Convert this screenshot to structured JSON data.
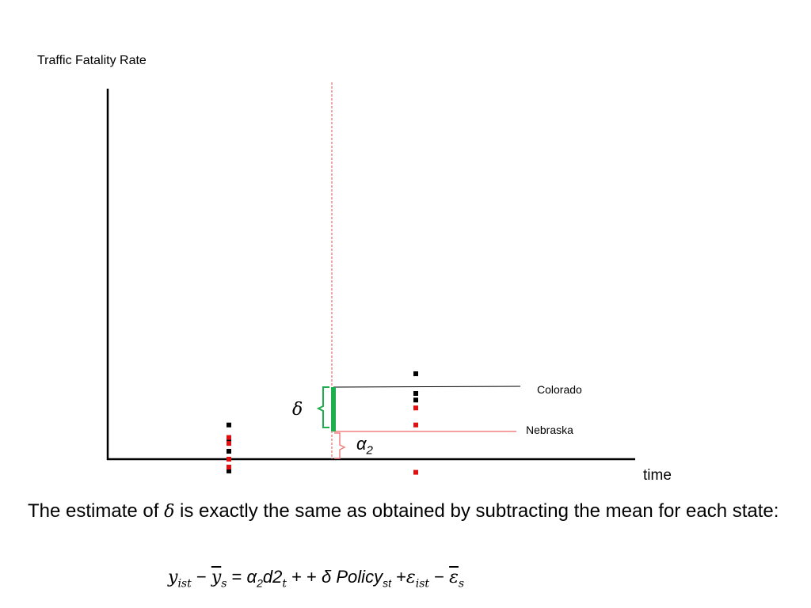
{
  "chart_data": {
    "type": "scatter",
    "title": "",
    "ylabel": "Traffic Fatality Rate",
    "xlabel": "time",
    "series": [
      {
        "name": "Colorado",
        "color": "#000000",
        "points": [
          {
            "x": 1,
            "y": 5.2
          },
          {
            "x": 1,
            "y": 3.0
          },
          {
            "x": 1,
            "y": 1.2
          },
          {
            "x": 1,
            "y": -1.8
          },
          {
            "x": 2,
            "y": 13.0
          },
          {
            "x": 2,
            "y": 10.0
          },
          {
            "x": 2,
            "y": 9.0
          }
        ]
      },
      {
        "name": "Nebraska",
        "color": "#dd1111",
        "points": [
          {
            "x": 1,
            "y": 3.3
          },
          {
            "x": 1,
            "y": 2.4
          },
          {
            "x": 1,
            "y": 0.0
          },
          {
            "x": 1,
            "y": -1.2
          },
          {
            "x": 2,
            "y": 7.8
          },
          {
            "x": 2,
            "y": 5.2
          },
          {
            "x": 2,
            "y": -2.0
          }
        ]
      }
    ],
    "reference_lines": [
      {
        "name": "Colorado",
        "y": 11.5,
        "color": "#000000"
      },
      {
        "name": "Nebraska",
        "y": 4.8,
        "color": "#f08080"
      }
    ],
    "policy_time": 1.5,
    "delta_span": [
      4.8,
      11.5
    ],
    "alpha_span": [
      0.0,
      4.8
    ],
    "annotations": {
      "delta": "δ",
      "alpha": "α",
      "alpha_sub": "2"
    },
    "colors": {
      "policy_line": "#d9534f",
      "delta_bar": "#1fae4e",
      "brace_delta": "#1fae4e",
      "brace_alpha": "#f08080"
    }
  },
  "text": {
    "statement_part1": "The estimate of ",
    "statement_delta": "δ",
    "statement_part2": " is exactly the same as obtained by subtracting the mean for each state:"
  },
  "equation": {
    "y": "y",
    "y_sub": "ist",
    "minus1": " − ",
    "ybar": "y",
    "ybar_sub": "s",
    "equals": " =  ",
    "alpha": "α",
    "alpha_sub": "2",
    "d2": "d2",
    "d2_sub": "t",
    "plus_terms": " + + ",
    "delta": "δ",
    "policy": " Policy",
    "policy_sub": "st",
    "plus_eps": " +",
    "eps": "ε",
    "eps_sub": "ist",
    "minus2": " − ",
    "epsbar": "ε",
    "epsbar_sub": "s"
  }
}
